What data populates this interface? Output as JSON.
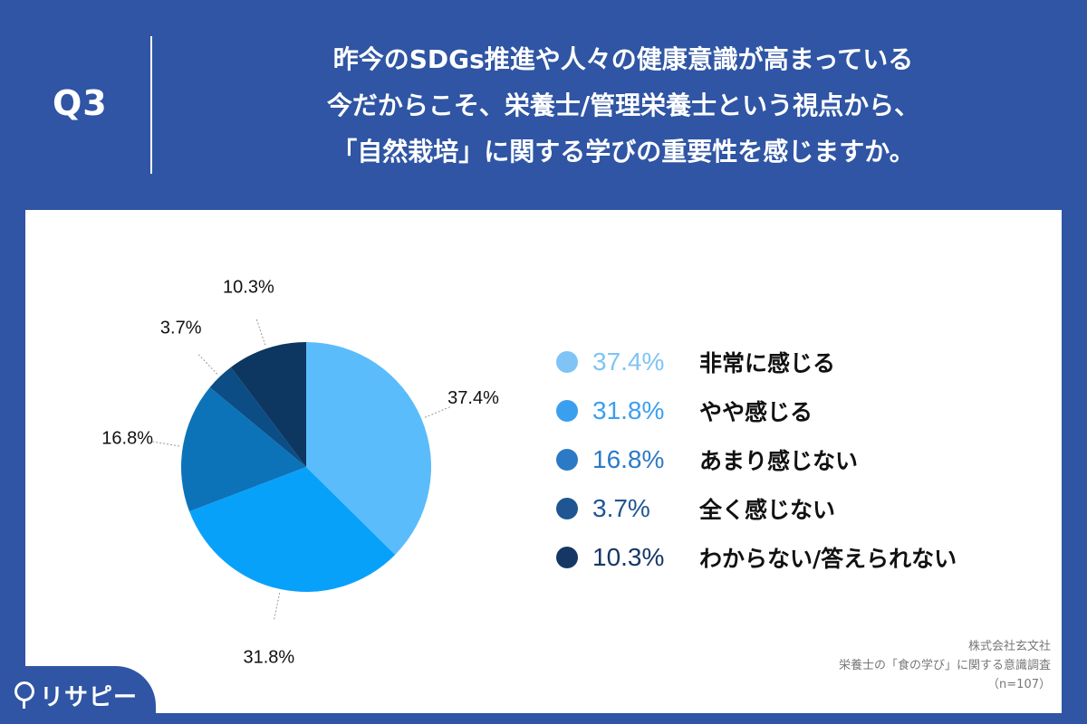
{
  "question": {
    "label": "Q3",
    "lines": [
      "昨今のSDGs推進や人々の健康意識が高まっている",
      "今だからこそ、栄養士/管理栄養士という視点から、",
      "「自然栽培」に関する学びの重要性を感じますか。"
    ]
  },
  "chart_data": {
    "type": "pie",
    "title": "",
    "start_angle_deg": 0,
    "direction": "clockwise",
    "legend_placement": "right",
    "slices": [
      {
        "label": "非常に感じる",
        "value": 37.4,
        "value_label": "37.4%",
        "color": "#5bbcfb"
      },
      {
        "label": "やや感じる",
        "value": 31.8,
        "value_label": "31.8%",
        "color": "#08a1fa"
      },
      {
        "label": "あまり感じない",
        "value": 16.8,
        "value_label": "16.8%",
        "color": "#0d73b9"
      },
      {
        "label": "全く感じない",
        "value": 3.7,
        "value_label": "3.7%",
        "color": "#0c4d85"
      },
      {
        "label": "わからない/答えられない",
        "value": 10.3,
        "value_label": "10.3%",
        "color": "#0d3660"
      }
    ]
  },
  "legend_colors": [
    "#7fc4f4",
    "#3b9ff0",
    "#2c7ac6",
    "#1e5592",
    "#153766"
  ],
  "source": {
    "company": "株式会社玄文社",
    "survey": "栄養士の「食の学び」に関する意識調査",
    "sample": "（n=107）"
  },
  "logo": {
    "icon": "location-pin-icon",
    "text": "リサピー"
  }
}
